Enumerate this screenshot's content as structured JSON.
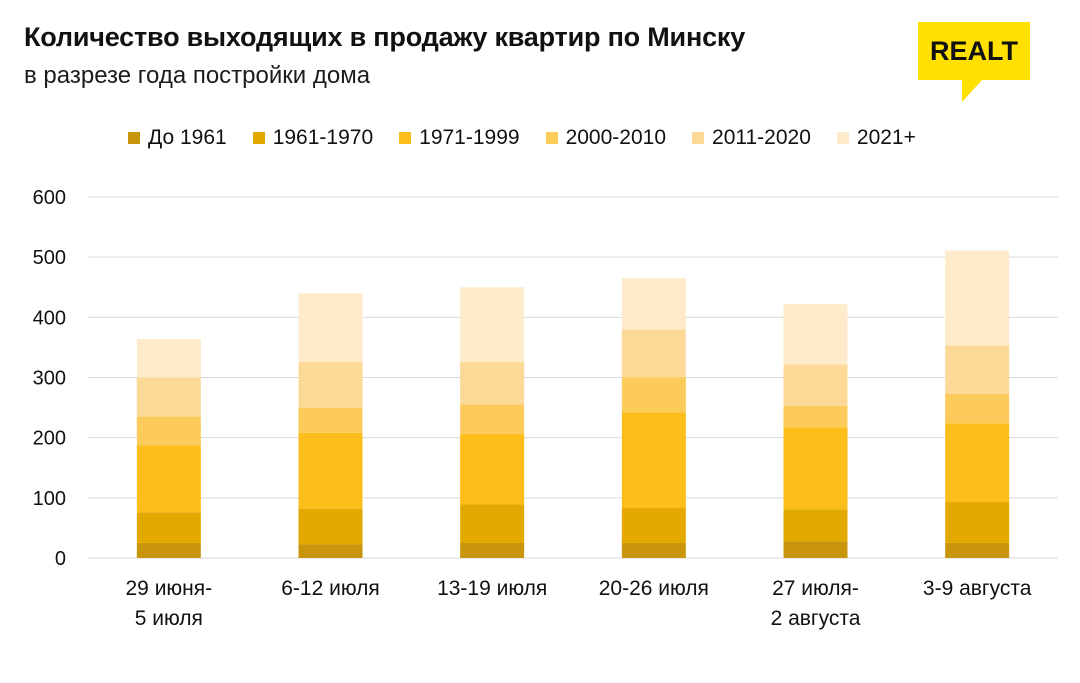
{
  "header": {
    "title": "Количество выходящих в продажу квартир по Минску",
    "subtitle": "в разрезе года постройки дома",
    "logo_text": "REALT"
  },
  "colors": {
    "brand_yellow": "#FFE000",
    "grid": "#d9d9d9",
    "text": "#111111"
  },
  "chart_data": {
    "type": "bar",
    "stacked": true,
    "title": "Количество выходящих в продажу квартир по Минску",
    "subtitle": "в разрезе года постройки дома",
    "categories": [
      [
        "29 июня-",
        "5 июля"
      ],
      [
        "6-12 июля"
      ],
      [
        "13-19 июля"
      ],
      [
        "20-26 июля"
      ],
      [
        "27 июля-",
        "2 августа"
      ],
      [
        "3-9 августа"
      ]
    ],
    "series": [
      {
        "name": "До 1961",
        "color": "#C9960B",
        "values": [
          25,
          23,
          25,
          25,
          28,
          25
        ]
      },
      {
        "name": "1961-1970",
        "color": "#E3A900",
        "values": [
          51,
          59,
          64,
          58,
          53,
          68
        ]
      },
      {
        "name": "1971-1999",
        "color": "#FDBD1B",
        "values": [
          111,
          126,
          117,
          159,
          136,
          131
        ]
      },
      {
        "name": "2000-2010",
        "color": "#FDCB5A",
        "values": [
          48,
          42,
          49,
          58,
          36,
          49
        ]
      },
      {
        "name": "2011-2020",
        "color": "#FCD997",
        "values": [
          65,
          76,
          71,
          80,
          69,
          80
        ]
      },
      {
        "name": "2021+",
        "color": "#FDEBCB",
        "values": [
          64,
          114,
          124,
          85,
          100,
          158
        ]
      }
    ],
    "ylim": [
      0,
      600
    ],
    "yticks": [
      0,
      100,
      200,
      300,
      400,
      500,
      600
    ],
    "grid": true,
    "legend_position": "top"
  }
}
